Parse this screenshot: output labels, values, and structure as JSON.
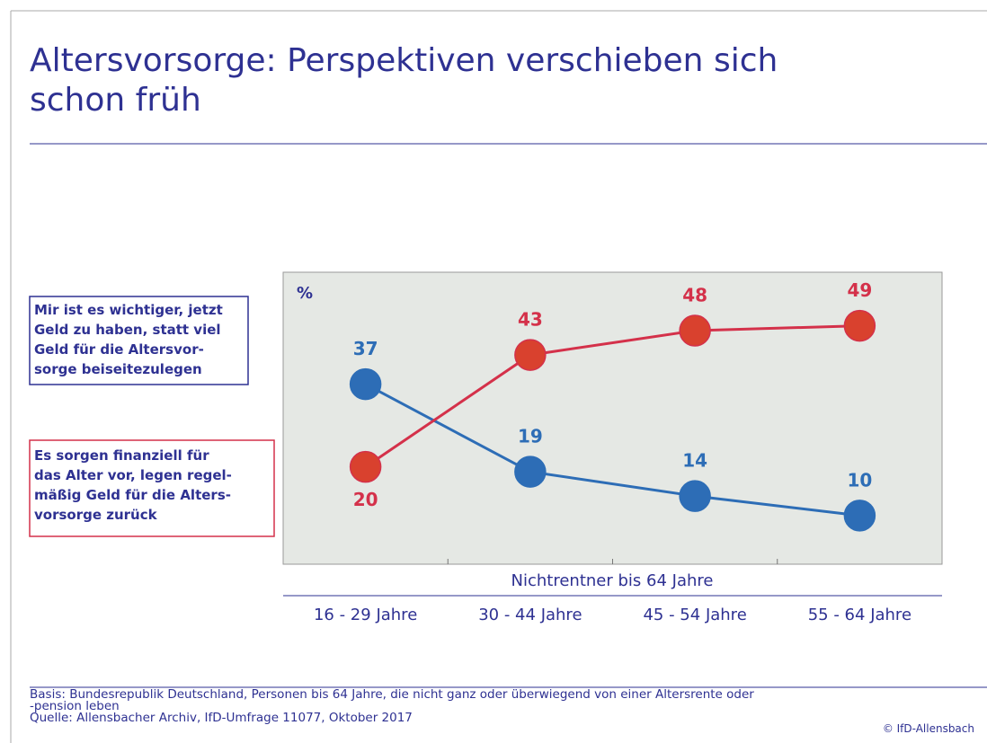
{
  "chart_data": {
    "type": "line",
    "title": "Altersvorsorge: Perspektiven verschieben sich\nschon früh",
    "y_label": "%",
    "x_label": "Nichtrentner bis 64 Jahre",
    "categories": [
      "16 - 29 Jahre",
      "30 - 44 Jahre",
      "45 - 54 Jahre",
      "55 - 64 Jahre"
    ],
    "ylim": [
      0,
      60
    ],
    "series": [
      {
        "name": "Mir ist es wichtiger, jetzt\nGeld zu haben, statt viel\nGeld für die Altersvor-\nsorge beiseitezulegen",
        "color": "#2d6db6",
        "values": [
          37,
          19,
          14,
          10
        ]
      },
      {
        "name": "Es sorgen finanziell für\ndas Alter vor, legen regel-\nmäßig Geld für die Alters-\nvorsorge zurück",
        "color": "#d4314a",
        "marker_color": "#d9412e",
        "values": [
          20,
          43,
          48,
          49
        ]
      }
    ],
    "footnote": "Basis: Bundesrepublik Deutschland, Personen bis 64 Jahre, die nicht ganz oder überwiegend von einer Altersrente oder\n-pension leben\nQuelle: Allensbacher Archiv, IfD-Umfrage 11077, Oktober 2017",
    "copyright": "© IfD-Allensbach"
  }
}
